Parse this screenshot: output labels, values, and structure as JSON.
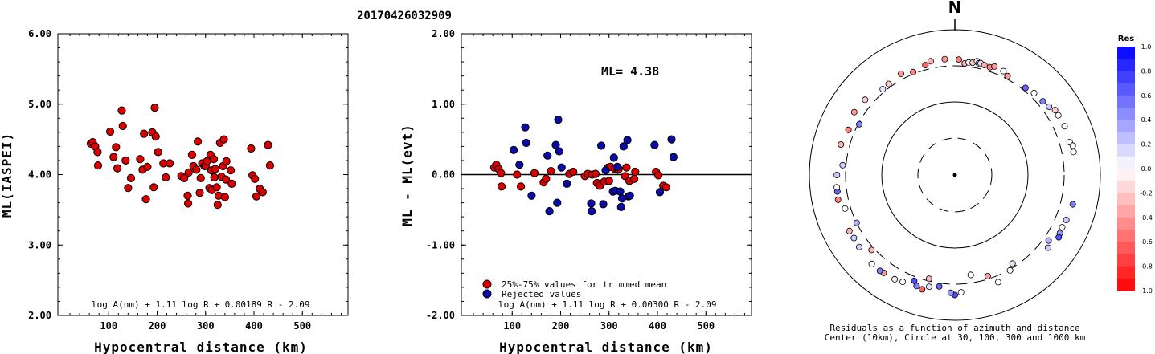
{
  "title": "20170426032909",
  "chart_data": [
    {
      "type": "scatter",
      "ylabel": "ML(IASPEI)",
      "xlabel": "Hypocentral distance (km)",
      "xlim": [
        0,
        600
      ],
      "ylim": [
        2.0,
        6.0
      ],
      "xticks": [
        "100",
        "200",
        "300",
        "400",
        "500"
      ],
      "yticks": [
        "2.00",
        "3.00",
        "4.00",
        "5.00",
        "6.00"
      ],
      "formula": "log A(nm) + 1.11 log R + 0.00189 R - 2.09",
      "series": [
        {
          "color": "#dd0000",
          "points": [
            [
              63,
              4.44
            ],
            [
              67,
              4.46
            ],
            [
              72,
              4.4
            ],
            [
              77,
              4.32
            ],
            [
              78,
              4.13
            ],
            [
              103,
              4.61
            ],
            [
              110,
              4.25
            ],
            [
              115,
              4.39
            ],
            [
              118,
              4.09
            ],
            [
              127,
              4.91
            ],
            [
              129,
              4.69
            ],
            [
              135,
              4.2
            ],
            [
              140,
              3.81
            ],
            [
              146,
              3.95
            ],
            [
              165,
              4.22
            ],
            [
              170,
              4.07
            ],
            [
              173,
              4.58
            ],
            [
              177,
              3.65
            ],
            [
              180,
              4.11
            ],
            [
              190,
              4.6
            ],
            [
              193,
              3.82
            ],
            [
              195,
              4.95
            ],
            [
              197,
              4.54
            ],
            [
              202,
              4.32
            ],
            [
              213,
              4.16
            ],
            [
              218,
              3.96
            ],
            [
              226,
              4.16
            ],
            [
              250,
              3.98
            ],
            [
              256,
              3.95
            ],
            [
              263,
              3.7
            ],
            [
              264,
              3.59
            ],
            [
              265,
              4.03
            ],
            [
              272,
              4.28
            ],
            [
              275,
              4.12
            ],
            [
              281,
              4.07
            ],
            [
              284,
              4.47
            ],
            [
              288,
              3.74
            ],
            [
              290,
              3.95
            ],
            [
              293,
              4.16
            ],
            [
              298,
              4.12
            ],
            [
              300,
              4.13
            ],
            [
              303,
              4.19
            ],
            [
              308,
              3.81
            ],
            [
              310,
              4.28
            ],
            [
              312,
              4.06
            ],
            [
              313,
              3.78
            ],
            [
              317,
              4.22
            ],
            [
              318,
              3.96
            ],
            [
              320,
              4.08
            ],
            [
              323,
              3.82
            ],
            [
              325,
              3.57
            ],
            [
              327,
              3.7
            ],
            [
              330,
              4.45
            ],
            [
              333,
              3.97
            ],
            [
              336,
              4.12
            ],
            [
              338,
              4.5
            ],
            [
              340,
              3.68
            ],
            [
              342,
              3.93
            ],
            [
              343,
              4.19
            ],
            [
              352,
              4.06
            ],
            [
              354,
              3.87
            ],
            [
              394,
              4.37
            ],
            [
              397,
              3.99
            ],
            [
              402,
              3.94
            ],
            [
              405,
              3.69
            ],
            [
              412,
              3.8
            ],
            [
              418,
              3.75
            ],
            [
              429,
              4.42
            ],
            [
              433,
              4.13
            ]
          ]
        }
      ]
    },
    {
      "type": "scatter",
      "ylabel": "ML - ML(evt)",
      "xlabel": "Hypocentral distance (km)",
      "xlim": [
        0,
        600
      ],
      "ylim": [
        -2.0,
        2.0
      ],
      "xticks": [
        "100",
        "200",
        "300",
        "400",
        "500"
      ],
      "yticks": [
        "-2.00",
        "-1.00",
        "0.00",
        "1.00",
        "2.00"
      ],
      "annotation": "ML= 4.38",
      "formula": "log A(nm) + 1.11 log R + 0.00300 R - 2.09",
      "legend": [
        "25%-75% values for trimmed mean",
        "Rejected values"
      ],
      "series": [
        {
          "name": "25%-75% values for trimmed mean",
          "color": "#dd0000",
          "points": [
            [
              63,
              0.1
            ],
            [
              67,
              0.14
            ],
            [
              72,
              0.08
            ],
            [
              77,
              0.02
            ],
            [
              78,
              -0.17
            ],
            [
              110,
              0.0
            ],
            [
              118,
              -0.17
            ],
            [
              146,
              0.02
            ],
            [
              165,
              -0.11
            ],
            [
              170,
              -0.06
            ],
            [
              180,
              0.05
            ],
            [
              218,
              0.01
            ],
            [
              226,
              0.04
            ],
            [
              250,
              -0.02
            ],
            [
              256,
              0.01
            ],
            [
              265,
              0.0
            ],
            [
              272,
              0.01
            ],
            [
              275,
              -0.12
            ],
            [
              281,
              -0.16
            ],
            [
              290,
              -0.1
            ],
            [
              298,
              0.1
            ],
            [
              300,
              -0.09
            ],
            [
              303,
              0.11
            ],
            [
              312,
              0.08
            ],
            [
              318,
              0.07
            ],
            [
              320,
              0.08
            ],
            [
              333,
              -0.02
            ],
            [
              336,
              0.1
            ],
            [
              342,
              -0.09
            ],
            [
              352,
              -0.06
            ],
            [
              354,
              0.04
            ],
            [
              397,
              0.04
            ],
            [
              402,
              -0.01
            ],
            [
              412,
              -0.16
            ],
            [
              418,
              -0.18
            ]
          ]
        },
        {
          "name": "Rejected values",
          "color": "#0a0aa8",
          "points": [
            [
              103,
              0.35
            ],
            [
              115,
              0.14
            ],
            [
              127,
              0.67
            ],
            [
              129,
              0.45
            ],
            [
              140,
              -0.3
            ],
            [
              173,
              0.27
            ],
            [
              177,
              -0.52
            ],
            [
              190,
              0.42
            ],
            [
              193,
              -0.4
            ],
            [
              195,
              0.78
            ],
            [
              197,
              0.33
            ],
            [
              202,
              0.1
            ],
            [
              213,
              -0.13
            ],
            [
              263,
              -0.41
            ],
            [
              264,
              -0.52
            ],
            [
              284,
              0.41
            ],
            [
              288,
              -0.42
            ],
            [
              293,
              0.06
            ],
            [
              308,
              -0.24
            ],
            [
              310,
              0.24
            ],
            [
              313,
              -0.23
            ],
            [
              317,
              0.11
            ],
            [
              323,
              -0.24
            ],
            [
              325,
              -0.46
            ],
            [
              327,
              -0.34
            ],
            [
              330,
              0.4
            ],
            [
              338,
              0.49
            ],
            [
              340,
              -0.31
            ],
            [
              343,
              -0.3
            ],
            [
              394,
              0.42
            ],
            [
              405,
              -0.25
            ],
            [
              429,
              0.5
            ],
            [
              433,
              0.25
            ]
          ]
        }
      ]
    },
    {
      "type": "scatter",
      "subtype": "polar",
      "north_label": "N",
      "caption": [
        "Residuals as a function of azimuth and distance",
        "Center (10km), Circle at 30, 100, 300 and 1000 km"
      ],
      "colorbar": {
        "title": "Res",
        "ticks": [
          "1.0",
          "0.8",
          "0.6",
          "0.4",
          "0.2",
          "0.0",
          "-0.2",
          "-0.4",
          "-0.6",
          "-0.8",
          "-1.0"
        ],
        "positive_color": "#0000ff",
        "negative_color": "#ff0000"
      },
      "points_az_dist_res": [
        [
          -40,
          330,
          0.1
        ],
        [
          -36,
          335,
          -0.2
        ],
        [
          -28,
          360,
          -0.4
        ],
        [
          -22,
          320,
          -0.5
        ],
        [
          -15,
          350,
          -0.6
        ],
        [
          -12,
          380,
          -0.3
        ],
        [
          -5,
          380,
          -0.4
        ],
        [
          2,
          370,
          -0.5
        ],
        [
          5,
          330,
          -0.3
        ],
        [
          7,
          345,
          0.0
        ],
        [
          9,
          350,
          -0.2
        ],
        [
          11,
          375,
          -0.1
        ],
        [
          12,
          355,
          0.2
        ],
        [
          13,
          360,
          0.1
        ],
        [
          15,
          350,
          -0.3
        ],
        [
          18,
          345,
          -0.5
        ],
        [
          20,
          370,
          -0.4
        ],
        [
          25,
          360,
          0.0
        ],
        [
          28,
          330,
          -0.4
        ],
        [
          39,
          330,
          0.6
        ],
        [
          44,
          350,
          0.0
        ],
        [
          50,
          360,
          0.5
        ],
        [
          54,
          380,
          0.2
        ],
        [
          57,
          420,
          -0.2
        ],
        [
          60,
          420,
          0.0
        ],
        [
          66,
          430,
          0.0
        ],
        [
          74,
          420,
          0.0
        ],
        [
          76,
          450,
          0.0
        ],
        [
          79,
          440,
          0.0
        ],
        [
          104,
          450,
          0.5
        ],
        [
          112,
          430,
          0.2
        ],
        [
          116,
          420,
          0.0
        ],
        [
          119,
          430,
          0.4
        ],
        [
          121,
          445,
          0.7
        ],
        [
          125,
          355,
          0.3
        ],
        [
          128,
          405,
          0.2
        ],
        [
          147,
          270,
          0.1
        ],
        [
          150,
          310,
          0.0
        ],
        [
          158,
          370,
          0.0
        ],
        [
          162,
          275,
          -0.4
        ],
        [
          171,
          235,
          0.0
        ],
        [
          177,
          395,
          0.0
        ],
        [
          180,
          430,
          0.7
        ],
        [
          182,
          400,
          0.4
        ],
        [
          188,
          335,
          0.6
        ],
        [
          193,
          360,
          0.1
        ],
        [
          194,
          280,
          -0.3
        ],
        [
          196,
          415,
          -0.6
        ],
        [
          199,
          395,
          0.5
        ],
        [
          201,
          345,
          0.7
        ],
        [
          206,
          415,
          0.0
        ],
        [
          210,
          435,
          -0.1
        ],
        [
          216,
          445,
          -0.4
        ],
        [
          218,
          455,
          0.5
        ],
        [
          223,
          455,
          0.0
        ],
        [
          228,
          330,
          -0.3
        ],
        [
          233,
          425,
          0.2
        ],
        [
          238,
          415,
          0.2
        ],
        [
          242,
          420,
          -0.3
        ],
        [
          244,
          300,
          0.3
        ],
        [
          253,
          360,
          0.0
        ],
        [
          258,
          420,
          -0.5
        ],
        [
          262,
          410,
          0.6
        ],
        [
          264,
          410,
          0.0
        ],
        [
          270,
          400,
          0.2
        ],
        [
          275,
          335,
          0.2
        ],
        [
          285,
          400,
          -0.3
        ],
        [
          293,
          370,
          -0.5
        ],
        [
          298,
          290,
          0.5
        ],
        [
          302,
          410,
          -0.4
        ],
        [
          310,
          390,
          -0.2
        ]
      ]
    }
  ]
}
